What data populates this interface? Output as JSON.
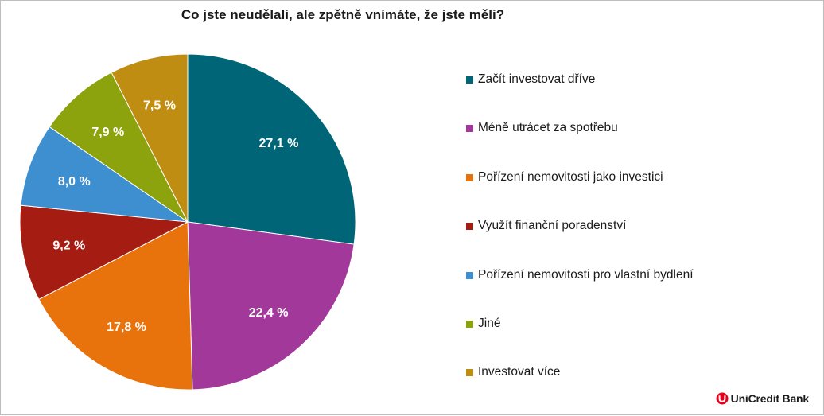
{
  "chart_data": {
    "type": "pie",
    "title": "Co jste neudělali, ale zpětně vnímáte, že jste měli?",
    "categories": [
      "Začít investovat dříve",
      "Méně utrácet za spotřebu",
      "Pořízení nemovitosti jako investici",
      "Využít finanční poradenství",
      "Pořízení nemovitosti pro vlastní bydlení",
      "Jiné",
      "Investovat více"
    ],
    "values": [
      27.1,
      22.4,
      17.8,
      9.2,
      8.0,
      7.9,
      7.5
    ],
    "data_labels": [
      "27,1 %",
      "22,4 %",
      "17,8 %",
      "9,2 %",
      "8,0 %",
      "7,9 %",
      "7,5 %"
    ],
    "colors": [
      "#006577",
      "#a1389a",
      "#e8720c",
      "#a51c12",
      "#3d8fd0",
      "#8ca30e",
      "#c08d13"
    ],
    "legend_position": "right",
    "start_angle": "12 o'clock",
    "direction": "clockwise"
  },
  "branding": {
    "logo_text": "UniCredit Bank",
    "logo_color": "#e2001a"
  }
}
